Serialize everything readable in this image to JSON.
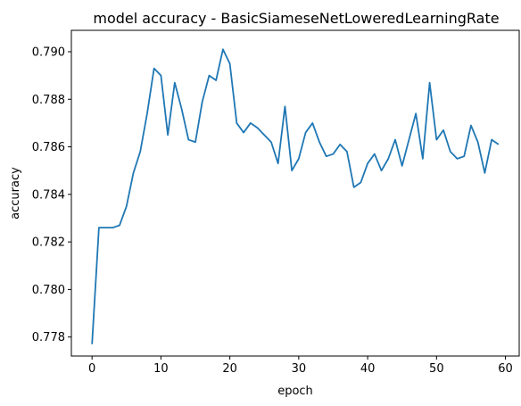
{
  "chart_data": {
    "type": "line",
    "title": "model accuracy - BasicSiameseNetLoweredLearningRate",
    "xlabel": "epoch",
    "ylabel": "accuracy",
    "xlim": [
      -3,
      62
    ],
    "ylim": [
      0.7772,
      0.7909
    ],
    "xticks": [
      0,
      10,
      20,
      30,
      40,
      50,
      60
    ],
    "yticks": [
      0.778,
      0.78,
      0.782,
      0.784,
      0.786,
      0.788,
      0.79
    ],
    "ytick_labels": [
      "0.778",
      "0.780",
      "0.782",
      "0.784",
      "0.786",
      "0.788",
      "0.790"
    ],
    "grid": false,
    "series": [
      {
        "color": "#1f77b4",
        "x": [
          0,
          1,
          2,
          3,
          4,
          5,
          6,
          7,
          8,
          9,
          10,
          11,
          12,
          13,
          14,
          15,
          16,
          17,
          18,
          19,
          20,
          21,
          22,
          23,
          24,
          25,
          26,
          27,
          28,
          29,
          30,
          31,
          32,
          33,
          34,
          35,
          36,
          37,
          38,
          39,
          40,
          41,
          42,
          43,
          44,
          45,
          46,
          47,
          48,
          49,
          50,
          51,
          52,
          53,
          54,
          55,
          56,
          57,
          58,
          59
        ],
        "y": [
          0.7777,
          0.7826,
          0.7826,
          0.7826,
          0.7827,
          0.7835,
          0.7849,
          0.7858,
          0.7874,
          0.7893,
          0.789,
          0.7865,
          0.7887,
          0.7876,
          0.7863,
          0.7862,
          0.7879,
          0.789,
          0.7888,
          0.7901,
          0.7895,
          0.787,
          0.7866,
          0.787,
          0.7868,
          0.7865,
          0.7862,
          0.7853,
          0.7877,
          0.785,
          0.7855,
          0.7866,
          0.787,
          0.7862,
          0.7856,
          0.7857,
          0.7861,
          0.7858,
          0.7843,
          0.7845,
          0.7853,
          0.7857,
          0.785,
          0.7855,
          0.7863,
          0.7852,
          0.7863,
          0.7874,
          0.7855,
          0.7887,
          0.7863,
          0.7867,
          0.7858,
          0.7855,
          0.7856,
          0.7869,
          0.7862,
          0.7849,
          0.7863,
          0.7861
        ]
      }
    ]
  }
}
